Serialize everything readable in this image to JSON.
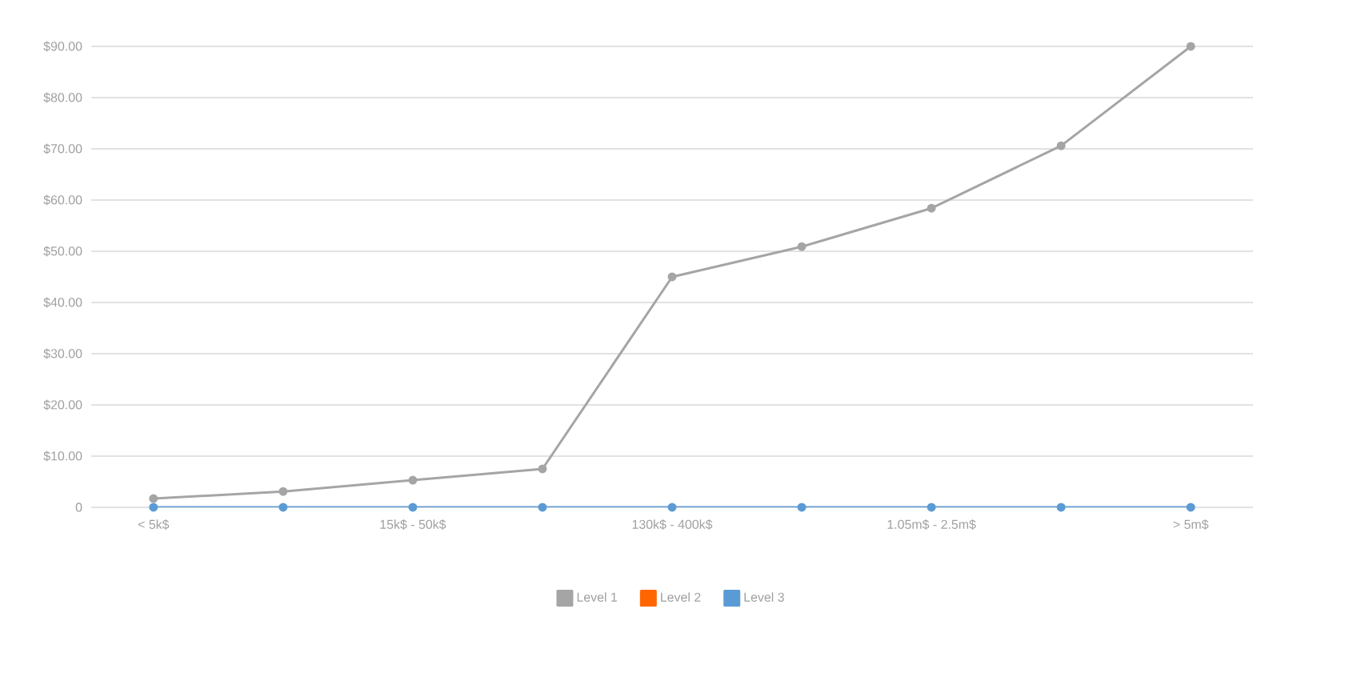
{
  "chart_data": {
    "type": "line",
    "categories": [
      "< 5k$",
      null,
      "15k$ - 50k$",
      null,
      "130k$ - 400k$",
      null,
      "1.05m$ - 2.5m$",
      null,
      "> 5m$"
    ],
    "series": [
      {
        "name": "Level 1",
        "color": "#a5a5a5",
        "values": [
          1.7,
          3.1,
          5.3,
          7.5,
          45,
          50.9,
          58.4,
          70.6,
          90
        ]
      },
      {
        "name": "Level 2",
        "color": "#ff6600",
        "values": [
          null,
          null,
          null,
          null,
          null,
          null,
          null,
          null,
          null
        ]
      },
      {
        "name": "Level 3",
        "color": "#5b9bd5",
        "values": [
          0,
          0,
          0,
          0,
          0,
          0,
          0,
          0,
          0
        ]
      }
    ],
    "ylim": [
      0,
      90
    ],
    "yticks": [
      0,
      {
        "value": 10,
        "label": "$10.00"
      },
      {
        "value": 20,
        "label": "$20.00"
      },
      {
        "value": 30,
        "label": "$30.00"
      },
      {
        "value": 40,
        "label": "$40.00"
      },
      {
        "value": 50,
        "label": "$50.00"
      },
      {
        "value": 60,
        "label": "$60.00"
      },
      {
        "value": 70,
        "label": "$70.00"
      },
      {
        "value": 80,
        "label": "$80.00"
      },
      {
        "value": 90,
        "label": "$90.00"
      }
    ],
    "grid": "y",
    "legend": "bottom",
    "marker": "circle",
    "line_style": "solid"
  }
}
